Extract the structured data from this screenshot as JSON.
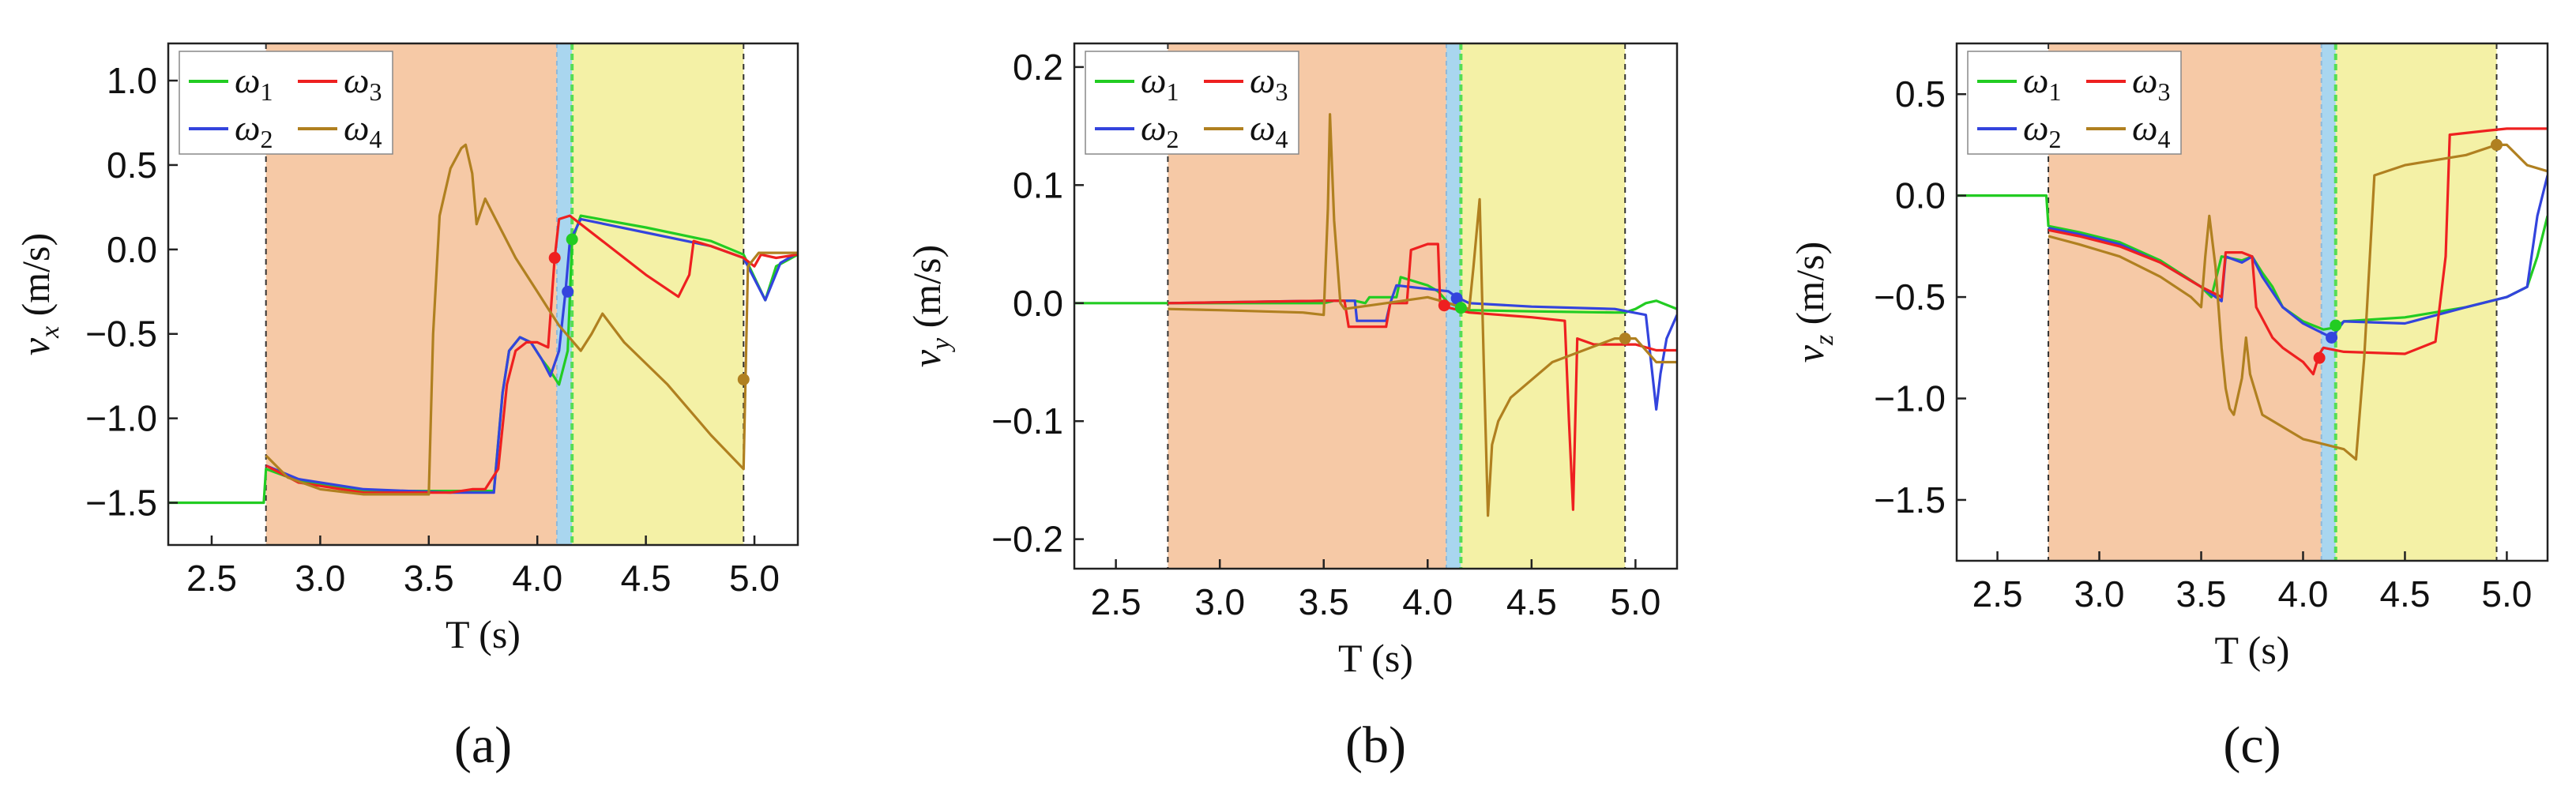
{
  "chart_data": [
    {
      "type": "line",
      "panel_label": "(a)",
      "xlabel": "T (s)",
      "ylabel_var": "v",
      "ylabel_sub": "x",
      "ylabel_unit": " (m/s)",
      "xlim": [
        2.3,
        5.2
      ],
      "ylim": [
        -1.75,
        1.22
      ],
      "xticks": [
        2.5,
        3.0,
        3.5,
        4.0,
        4.5,
        5.0
      ],
      "xtick_labels": [
        "2.5",
        "3.0",
        "3.5",
        "4.0",
        "4.5",
        "5.0"
      ],
      "yticks": [
        1.0,
        0.5,
        0.0,
        -0.5,
        -1.0,
        -1.5
      ],
      "ytick_labels": [
        "1.0",
        "0.5",
        "0.0",
        "−0.5",
        "−1.0",
        "−1.5"
      ],
      "regions": [
        {
          "x0": 2.75,
          "x1": 4.09,
          "color": "#f6c9a6"
        },
        {
          "x0": 4.09,
          "x1": 4.16,
          "color": "#a9d6ef"
        },
        {
          "x0": 4.16,
          "x1": 4.95,
          "color": "#f4f1a6"
        }
      ],
      "vlines": [
        2.75,
        4.95
      ],
      "series": [
        {
          "name": "ω1",
          "legend_base": "ω",
          "legend_sub": "1",
          "color": "#22cc22",
          "x": [
            2.3,
            2.74,
            2.75,
            2.9,
            3.2,
            3.6,
            3.8,
            3.84,
            3.87,
            3.92,
            3.97,
            4.02,
            4.05,
            4.1,
            4.14,
            4.16,
            4.2,
            4.5,
            4.8,
            4.95,
            5.05,
            5.1,
            5.2
          ],
          "y": [
            -1.5,
            -1.5,
            -1.3,
            -1.37,
            -1.43,
            -1.43,
            -1.43,
            -0.85,
            -0.6,
            -0.52,
            -0.55,
            -0.65,
            -0.7,
            -0.8,
            -0.6,
            0.05,
            0.2,
            0.13,
            0.05,
            -0.03,
            -0.3,
            -0.1,
            -0.03
          ]
        },
        {
          "name": "ω2",
          "legend_base": "ω",
          "legend_sub": "2",
          "color": "#3344dd",
          "x": [
            2.75,
            2.9,
            3.2,
            3.6,
            3.8,
            3.84,
            3.87,
            3.92,
            3.97,
            4.02,
            4.06,
            4.1,
            4.13,
            4.15,
            4.2,
            4.5,
            4.8,
            4.95,
            5.05,
            5.12,
            5.2
          ],
          "y": [
            -1.28,
            -1.36,
            -1.42,
            -1.44,
            -1.44,
            -0.85,
            -0.6,
            -0.52,
            -0.55,
            -0.65,
            -0.75,
            -0.6,
            -0.25,
            0.05,
            0.18,
            0.1,
            0.02,
            -0.05,
            -0.3,
            -0.08,
            -0.02
          ]
        },
        {
          "name": "ω3",
          "legend_base": "ω",
          "legend_sub": "3",
          "color": "#ee2020",
          "x": [
            2.75,
            2.9,
            3.2,
            3.6,
            3.7,
            3.72,
            3.76,
            3.82,
            3.86,
            3.9,
            3.95,
            4.0,
            4.05,
            4.08,
            4.1,
            4.15,
            4.2,
            4.3,
            4.5,
            4.65,
            4.7,
            4.72,
            4.8,
            4.95,
            5.0,
            5.03,
            5.1,
            5.2
          ],
          "y": [
            -1.28,
            -1.38,
            -1.44,
            -1.44,
            -1.42,
            -1.42,
            -1.42,
            -1.3,
            -0.8,
            -0.6,
            -0.55,
            -0.55,
            -0.58,
            -0.05,
            0.18,
            0.2,
            0.15,
            0.05,
            -0.15,
            -0.28,
            -0.15,
            0.05,
            0.02,
            -0.05,
            -0.1,
            -0.03,
            -0.05,
            -0.03
          ]
        },
        {
          "name": "ω4",
          "legend_base": "ω",
          "legend_sub": "4",
          "color": "#b08020",
          "x": [
            2.75,
            2.85,
            3.0,
            3.2,
            3.5,
            3.52,
            3.55,
            3.6,
            3.65,
            3.67,
            3.7,
            3.72,
            3.76,
            3.8,
            3.9,
            4.0,
            4.05,
            4.1,
            4.2,
            4.25,
            4.3,
            4.4,
            4.6,
            4.8,
            4.95,
            4.97,
            5.02,
            5.1,
            5.2
          ],
          "y": [
            -1.22,
            -1.35,
            -1.42,
            -1.45,
            -1.45,
            -0.5,
            0.2,
            0.48,
            0.6,
            0.62,
            0.45,
            0.15,
            0.3,
            0.2,
            -0.05,
            -0.25,
            -0.35,
            -0.45,
            -0.6,
            -0.5,
            -0.38,
            -0.55,
            -0.8,
            -1.1,
            -1.3,
            -0.1,
            -0.02,
            -0.02,
            -0.02
          ]
        }
      ],
      "markers": [
        {
          "x": 4.08,
          "y": -0.05,
          "color": "#ee2020"
        },
        {
          "x": 4.14,
          "y": -0.25,
          "color": "#3344dd"
        },
        {
          "x": 4.16,
          "y": 0.06,
          "color": "#22cc22"
        },
        {
          "x": 4.95,
          "y": -0.77,
          "color": "#b08020"
        }
      ]
    },
    {
      "type": "line",
      "panel_label": "(b)",
      "xlabel": "T (s)",
      "ylabel_var": "v",
      "ylabel_sub": "y",
      "ylabel_unit": " (m/s)",
      "xlim": [
        2.3,
        5.2
      ],
      "ylim": [
        -0.225,
        0.22
      ],
      "xticks": [
        2.5,
        3.0,
        3.5,
        4.0,
        4.5,
        5.0
      ],
      "xtick_labels": [
        "2.5",
        "3.0",
        "3.5",
        "4.0",
        "4.5",
        "5.0"
      ],
      "yticks": [
        0.2,
        0.1,
        0.0,
        -0.1,
        -0.2
      ],
      "ytick_labels": [
        "0.2",
        "0.1",
        "0.0",
        "−0.1",
        "−0.2"
      ],
      "regions": [
        {
          "x0": 2.75,
          "x1": 4.09,
          "color": "#f6c9a6"
        },
        {
          "x0": 4.09,
          "x1": 4.16,
          "color": "#a9d6ef"
        },
        {
          "x0": 4.16,
          "x1": 4.95,
          "color": "#f4f1a6"
        }
      ],
      "vlines": [
        2.75,
        4.95
      ],
      "series": [
        {
          "name": "ω1",
          "legend_base": "ω",
          "legend_sub": "1",
          "color": "#22cc22",
          "x": [
            2.3,
            3.5,
            3.55,
            3.65,
            3.7,
            3.72,
            3.85,
            3.87,
            4.0,
            4.05,
            4.1,
            4.15,
            4.2,
            4.5,
            4.9,
            4.95,
            5.0,
            5.05,
            5.1,
            5.2
          ],
          "y": [
            0.0,
            0.0,
            0.002,
            0.002,
            0.0,
            0.005,
            0.005,
            0.022,
            0.015,
            0.01,
            0.0,
            -0.003,
            -0.006,
            -0.007,
            -0.008,
            -0.008,
            -0.005,
            0.0,
            0.002,
            -0.005
          ]
        },
        {
          "name": "ω2",
          "legend_base": "ω",
          "legend_sub": "2",
          "color": "#3344dd",
          "x": [
            2.75,
            3.5,
            3.65,
            3.66,
            3.8,
            3.82,
            3.85,
            4.0,
            4.1,
            4.14,
            4.2,
            4.5,
            4.9,
            5.05,
            5.1,
            5.12,
            5.15,
            5.2
          ],
          "y": [
            0.0,
            0.002,
            0.002,
            -0.015,
            -0.015,
            0.0,
            0.015,
            0.012,
            0.01,
            0.005,
            0.0,
            -0.003,
            -0.005,
            -0.01,
            -0.09,
            -0.06,
            -0.03,
            -0.01
          ]
        },
        {
          "name": "ω3",
          "legend_base": "ω",
          "legend_sub": "3",
          "color": "#ee2020",
          "x": [
            2.75,
            3.5,
            3.6,
            3.62,
            3.8,
            3.82,
            3.9,
            3.92,
            4.0,
            4.05,
            4.06,
            4.08,
            4.2,
            4.5,
            4.66,
            4.68,
            4.7,
            4.72,
            4.8,
            5.0,
            5.1,
            5.2
          ],
          "y": [
            0.0,
            0.002,
            0.002,
            -0.02,
            -0.02,
            0.0,
            0.0,
            0.045,
            0.05,
            0.05,
            0.0,
            -0.003,
            -0.008,
            -0.012,
            -0.015,
            -0.1,
            -0.175,
            -0.03,
            -0.035,
            -0.035,
            -0.04,
            -0.04
          ]
        },
        {
          "name": "ω4",
          "legend_base": "ω",
          "legend_sub": "4",
          "color": "#b08020",
          "x": [
            2.75,
            3.0,
            3.4,
            3.5,
            3.52,
            3.53,
            3.55,
            3.58,
            3.6,
            3.8,
            4.0,
            4.2,
            4.22,
            4.25,
            4.27,
            4.29,
            4.31,
            4.34,
            4.4,
            4.6,
            4.9,
            4.95,
            5.0,
            5.1,
            5.2
          ],
          "y": [
            -0.005,
            -0.006,
            -0.008,
            -0.01,
            0.08,
            0.16,
            0.07,
            0.0,
            -0.005,
            0.0,
            0.005,
            -0.005,
            0.03,
            0.088,
            -0.05,
            -0.18,
            -0.12,
            -0.1,
            -0.08,
            -0.05,
            -0.03,
            -0.03,
            -0.03,
            -0.05,
            -0.05
          ]
        }
      ],
      "markers": [
        {
          "x": 4.08,
          "y": -0.002,
          "color": "#ee2020"
        },
        {
          "x": 4.14,
          "y": 0.004,
          "color": "#3344dd"
        },
        {
          "x": 4.16,
          "y": -0.004,
          "color": "#22cc22"
        },
        {
          "x": 4.95,
          "y": -0.03,
          "color": "#b08020"
        }
      ]
    },
    {
      "type": "line",
      "panel_label": "(c)",
      "xlabel": "T (s)",
      "ylabel_var": "v",
      "ylabel_sub": "z",
      "ylabel_unit": " (m/s)",
      "xlim": [
        2.3,
        5.2
      ],
      "ylim": [
        -1.8,
        0.75
      ],
      "xticks": [
        2.5,
        3.0,
        3.5,
        4.0,
        4.5,
        5.0
      ],
      "xtick_labels": [
        "2.5",
        "3.0",
        "3.5",
        "4.0",
        "4.5",
        "5.0"
      ],
      "yticks": [
        0.5,
        0.0,
        -0.5,
        -1.0,
        -1.5
      ],
      "ytick_labels": [
        "0.5",
        "0.0",
        "−0.5",
        "−1.0",
        "−1.5"
      ],
      "regions": [
        {
          "x0": 2.75,
          "x1": 4.09,
          "color": "#f6c9a6"
        },
        {
          "x0": 4.09,
          "x1": 4.16,
          "color": "#a9d6ef"
        },
        {
          "x0": 4.16,
          "x1": 4.95,
          "color": "#f4f1a6"
        }
      ],
      "vlines": [
        2.75,
        4.95
      ],
      "series": [
        {
          "name": "ω1",
          "legend_base": "ω",
          "legend_sub": "1",
          "color": "#22cc22",
          "x": [
            2.3,
            2.74,
            2.75,
            2.9,
            3.1,
            3.3,
            3.5,
            3.55,
            3.6,
            3.7,
            3.75,
            3.8,
            3.85,
            3.9,
            4.0,
            4.1,
            4.16,
            4.2,
            4.5,
            4.8,
            5.0,
            5.1,
            5.15,
            5.2
          ],
          "y": [
            0.0,
            0.0,
            -0.15,
            -0.18,
            -0.23,
            -0.32,
            -0.45,
            -0.5,
            -0.3,
            -0.32,
            -0.3,
            -0.38,
            -0.45,
            -0.55,
            -0.62,
            -0.66,
            -0.65,
            -0.62,
            -0.6,
            -0.55,
            -0.5,
            -0.45,
            -0.3,
            -0.1
          ]
        },
        {
          "name": "ω2",
          "legend_base": "ω",
          "legend_sub": "2",
          "color": "#3344dd",
          "x": [
            2.75,
            2.9,
            3.1,
            3.3,
            3.5,
            3.6,
            3.62,
            3.7,
            3.75,
            3.8,
            3.9,
            4.0,
            4.1,
            4.14,
            4.2,
            4.5,
            4.8,
            5.0,
            5.1,
            5.15,
            5.2
          ],
          "y": [
            -0.16,
            -0.19,
            -0.24,
            -0.33,
            -0.45,
            -0.52,
            -0.3,
            -0.33,
            -0.3,
            -0.4,
            -0.55,
            -0.63,
            -0.68,
            -0.7,
            -0.62,
            -0.63,
            -0.55,
            -0.5,
            -0.45,
            -0.1,
            0.1
          ]
        },
        {
          "name": "ω3",
          "legend_base": "ω",
          "legend_sub": "3",
          "color": "#ee2020",
          "x": [
            2.75,
            2.9,
            3.1,
            3.3,
            3.5,
            3.6,
            3.62,
            3.7,
            3.75,
            3.77,
            3.85,
            3.9,
            4.0,
            4.05,
            4.08,
            4.1,
            4.2,
            4.5,
            4.65,
            4.7,
            4.72,
            4.9,
            5.0,
            5.2
          ],
          "y": [
            -0.17,
            -0.2,
            -0.25,
            -0.33,
            -0.45,
            -0.5,
            -0.28,
            -0.28,
            -0.3,
            -0.55,
            -0.7,
            -0.75,
            -0.82,
            -0.88,
            -0.78,
            -0.75,
            -0.77,
            -0.78,
            -0.72,
            -0.3,
            0.3,
            0.32,
            0.33,
            0.33
          ]
        },
        {
          "name": "ω4",
          "legend_base": "ω",
          "legend_sub": "4",
          "color": "#b08020",
          "x": [
            2.75,
            2.9,
            3.1,
            3.3,
            3.45,
            3.5,
            3.52,
            3.54,
            3.57,
            3.6,
            3.62,
            3.64,
            3.66,
            3.7,
            3.72,
            3.74,
            3.8,
            4.0,
            4.2,
            4.26,
            4.3,
            4.35,
            4.5,
            4.8,
            4.95,
            5.0,
            5.1,
            5.2
          ],
          "y": [
            -0.2,
            -0.24,
            -0.3,
            -0.4,
            -0.5,
            -0.55,
            -0.3,
            -0.1,
            -0.35,
            -0.75,
            -0.95,
            -1.05,
            -1.08,
            -0.9,
            -0.7,
            -0.88,
            -1.08,
            -1.2,
            -1.25,
            -1.3,
            -0.8,
            0.1,
            0.15,
            0.2,
            0.25,
            0.25,
            0.15,
            0.12
          ]
        }
      ],
      "markers": [
        {
          "x": 4.08,
          "y": -0.8,
          "color": "#ee2020"
        },
        {
          "x": 4.14,
          "y": -0.7,
          "color": "#3344dd"
        },
        {
          "x": 4.16,
          "y": -0.64,
          "color": "#22cc22"
        },
        {
          "x": 4.95,
          "y": 0.25,
          "color": "#b08020"
        }
      ]
    }
  ]
}
